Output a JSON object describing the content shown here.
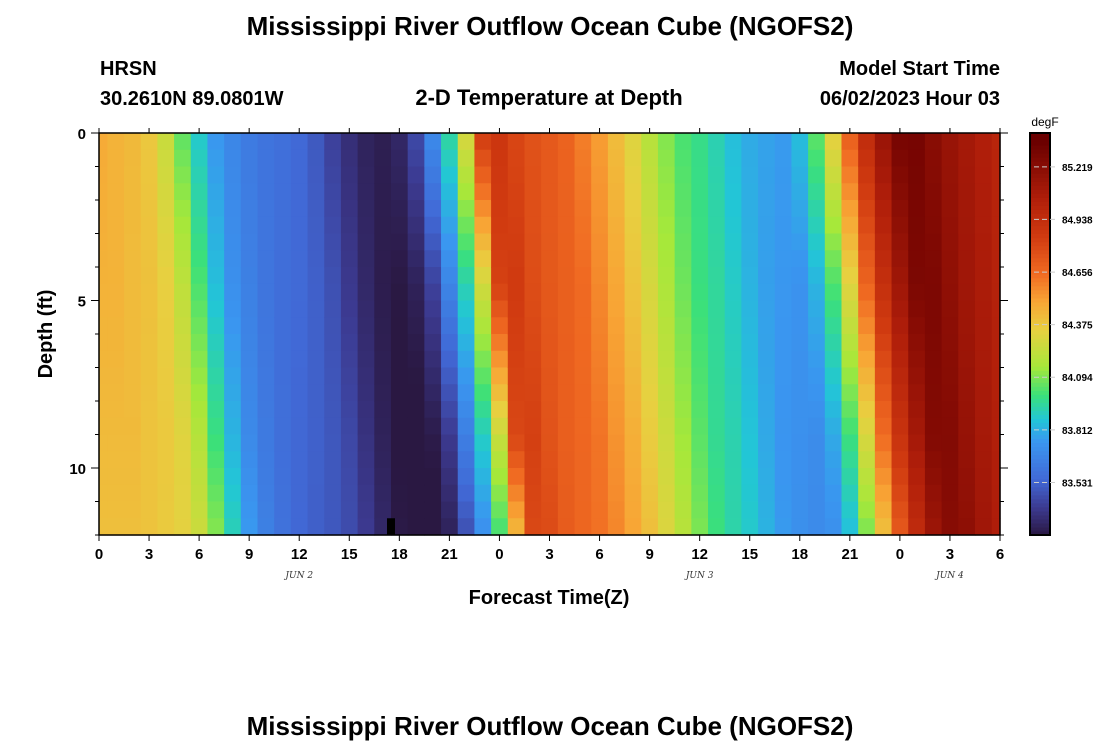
{
  "chart_data": {
    "type": "heatmap",
    "title": "Mississippi River Outflow Ocean Cube (NGOFS2)",
    "station": "HRSN",
    "location": "30.2610N  89.0801W",
    "subtitle": "2-D Temperature at Depth",
    "model_start_label": "Model Start Time",
    "model_start": "06/02/2023 Hour 03",
    "xlabel": "Forecast Time(Z)",
    "ylabel": "Depth (ft)",
    "xlim_hours": [
      0,
      54
    ],
    "ylim": [
      0,
      12
    ],
    "x_tick_labels": [
      "0",
      "3",
      "6",
      "9",
      "12",
      "15",
      "18",
      "21",
      "0",
      "3",
      "6",
      "9",
      "12",
      "15",
      "18",
      "21",
      "0",
      "3",
      "6"
    ],
    "y_tick_labels": [
      "0",
      "5",
      "10"
    ],
    "y_ticks": [
      0,
      5,
      10
    ],
    "date_labels": [
      {
        "text": "JUN 2",
        "hour": 12
      },
      {
        "text": "JUN 3",
        "hour": 36
      },
      {
        "text": "JUN 4",
        "hour": 51
      }
    ],
    "colorbar": {
      "unit": "degF",
      "ticks": [
        "85.219",
        "84.938",
        "84.656",
        "84.375",
        "84.094",
        "83.812",
        "83.531"
      ],
      "range": [
        83.25,
        85.4
      ]
    },
    "surface_hours": [
      0,
      1,
      2,
      3,
      4,
      5,
      6,
      7,
      8,
      9,
      10,
      11,
      12,
      13,
      14,
      15,
      16,
      17,
      18,
      19,
      20,
      21,
      22,
      23,
      24,
      25,
      26,
      27,
      28,
      29,
      30,
      31,
      32,
      33,
      34,
      35,
      36,
      37,
      38,
      39,
      40,
      41,
      42,
      43,
      44,
      45,
      46,
      47,
      48,
      49,
      50,
      51,
      52,
      53,
      54
    ],
    "surface_values_degF": [
      84.48,
      84.45,
      84.43,
      84.38,
      84.25,
      84.05,
      83.88,
      83.75,
      83.68,
      83.63,
      83.6,
      83.58,
      83.55,
      83.5,
      83.42,
      83.35,
      83.3,
      83.28,
      83.32,
      83.45,
      83.7,
      83.95,
      84.3,
      84.85,
      84.88,
      84.8,
      84.75,
      84.72,
      84.68,
      84.6,
      84.52,
      84.42,
      84.32,
      84.2,
      84.1,
      84.02,
      83.98,
      83.92,
      83.85,
      83.8,
      83.78,
      83.76,
      83.85,
      84.05,
      84.35,
      84.7,
      84.95,
      85.15,
      85.3,
      85.3,
      85.22,
      85.15,
      85.1,
      85.05,
      85.0
    ],
    "depth_lag_hours_per_ft": 0.22,
    "marker": {
      "hour": 17.5,
      "depth_ft": 11.5
    }
  }
}
